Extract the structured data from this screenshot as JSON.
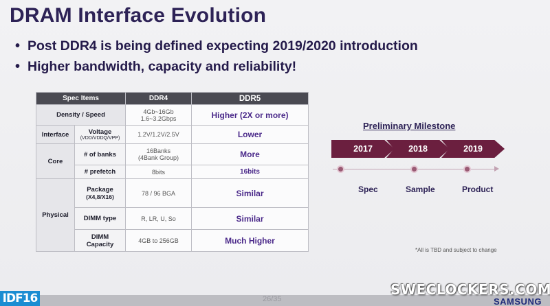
{
  "slide": {
    "title": "DRAM Interface Evolution",
    "bullets": [
      "Post DDR4 is being defined expecting 2019/2020 introduction",
      "Higher bandwidth, capacity and reliability!"
    ]
  },
  "table": {
    "headers": {
      "spec": "Spec Items",
      "ddr4": "DDR4",
      "ddr5": "DDR5"
    },
    "rows": {
      "density": {
        "item": "Density / Speed",
        "ddr4_line1": "4Gb~16Gb",
        "ddr4_line2": "1.6~3.2Gbps",
        "ddr5": "Higher (2X or more)"
      },
      "voltage": {
        "group": "Interface",
        "item": "Voltage",
        "item_sub": "(VDD/VDDQ/VPP)",
        "ddr4": "1.2V/1.2V/2.5V",
        "ddr5": "Lower"
      },
      "banks": {
        "group": "Core",
        "item": "# of banks",
        "ddr4_line1": "16Banks",
        "ddr4_line2": "(4Bank Group)",
        "ddr5": "More"
      },
      "prefetch": {
        "item": "# prefetch",
        "ddr4": "8bits",
        "ddr5": "16bits"
      },
      "package": {
        "group": "Physical",
        "item": "Package",
        "item_sub": "(X4,8/X16)",
        "ddr4": "78 / 96 BGA",
        "ddr5": "Similar"
      },
      "dimm_type": {
        "item": "DIMM type",
        "ddr4": "R, LR, U, So",
        "ddr5": "Similar"
      },
      "dimm_capacity": {
        "item_line1": "DIMM",
        "item_line2": "Capacity",
        "ddr4": "4GB to 256GB",
        "ddr5": "Much Higher"
      }
    }
  },
  "milestone": {
    "title": "Preliminary Milestone",
    "years": [
      "2017",
      "2018",
      "2019"
    ],
    "labels": [
      "Spec",
      "Sample",
      "Product"
    ]
  },
  "note": "*All is TBD and subject to change",
  "footer": {
    "page": "26/35",
    "event_logo": "IDF16",
    "watermark": "SWECLOCKERS.COM",
    "brand": "SAMSUNG"
  },
  "colors": {
    "title": "#2d2256",
    "ddr5_text": "#4b2a8a",
    "arrow": "#6b1f3f",
    "table_header": "#4a4a52"
  }
}
